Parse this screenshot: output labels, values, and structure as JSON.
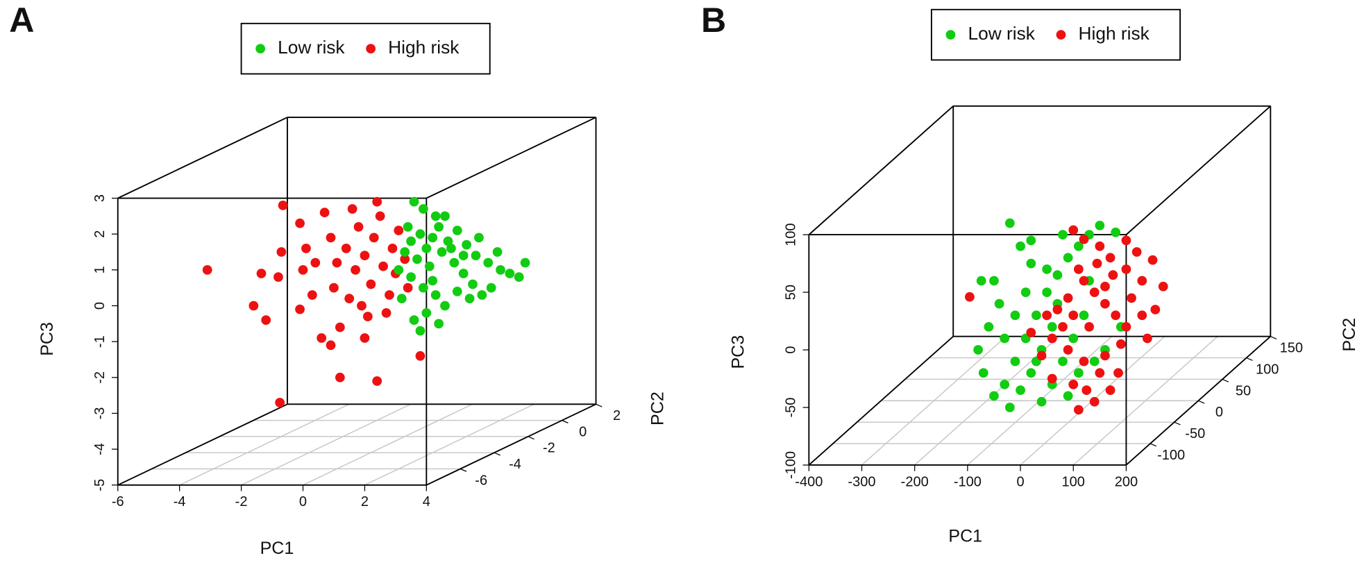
{
  "chart_data": [
    {
      "type": "scatter3d",
      "panel_label": "A",
      "x_label": "PC1",
      "y_label": "PC3",
      "z_label": "PC2",
      "xlim": [
        -6,
        4
      ],
      "ylim": [
        -5,
        3
      ],
      "zlim": [
        -8,
        2
      ],
      "xticks": [
        -6,
        -4,
        -2,
        0,
        2,
        4
      ],
      "yticks": [
        -5,
        -4,
        -3,
        -2,
        -1,
        0,
        1,
        2,
        3
      ],
      "zticks": [
        -6,
        -4,
        -2,
        0,
        2
      ],
      "floor_grid": true,
      "series": [
        {
          "name": "High risk",
          "color": "#ee1111",
          "x": [
            -3.1,
            -1.35,
            -1.6,
            -1.2,
            -0.7,
            -0.65,
            -0.1,
            -0.8,
            -0.1,
            -0.75,
            1.2,
            2.4,
            3.8,
            0.1,
            0.4,
            0.7,
            0.9,
            1.0,
            1.2,
            0.6,
            0.9,
            1.5,
            1.7,
            1.8,
            2.0,
            2.2,
            2.3,
            2.5,
            2.6,
            2.8,
            2.9,
            3.0,
            3.1,
            2.1,
            1.4,
            0.3,
            1.6,
            3.3,
            2.7,
            0.0,
            1.1,
            1.9,
            2.4,
            2.0,
            3.4
          ],
          "values": [
            1.0,
            0.9,
            0.0,
            -0.4,
            1.5,
            2.8,
            2.3,
            0.8,
            -0.1,
            -2.7,
            -2.0,
            -2.1,
            -1.4,
            1.6,
            1.2,
            2.6,
            1.9,
            0.5,
            -0.6,
            -0.9,
            -1.1,
            0.2,
            1.0,
            2.2,
            1.4,
            0.6,
            1.9,
            2.5,
            1.1,
            0.3,
            1.6,
            0.9,
            2.1,
            -0.3,
            1.6,
            0.3,
            2.7,
            1.3,
            -0.2,
            1.0,
            1.2,
            0.0,
            2.9,
            -0.9,
            0.5
          ]
        },
        {
          "name": "Low risk",
          "color": "#11cc11",
          "x": [
            3.6,
            3.9,
            4.3,
            4.6,
            3.4,
            3.8,
            4.2,
            4.7,
            5.0,
            5.3,
            5.6,
            6.0,
            6.4,
            7.2,
            7.0,
            3.3,
            3.7,
            4.1,
            4.5,
            4.9,
            5.2,
            5.5,
            5.8,
            6.1,
            6.7,
            3.5,
            3.9,
            4.3,
            4.0,
            3.6,
            3.2,
            4.6,
            5.0,
            5.4,
            4.4,
            3.8,
            4.8,
            5.2,
            4.0,
            3.5,
            4.4,
            5.7,
            6.3,
            3.1,
            4.2
          ],
          "values": [
            2.9,
            2.7,
            2.5,
            2.5,
            2.2,
            2.0,
            1.9,
            1.8,
            2.1,
            1.7,
            1.4,
            1.2,
            1.0,
            1.2,
            0.8,
            1.5,
            1.3,
            1.1,
            1.5,
            1.2,
            0.9,
            0.6,
            0.3,
            0.5,
            0.9,
            0.8,
            0.5,
            0.3,
            -0.2,
            -0.4,
            0.2,
            0.0,
            0.4,
            0.2,
            -0.5,
            -0.7,
            1.6,
            1.4,
            1.6,
            1.8,
            2.2,
            1.9,
            1.5,
            1.0,
            0.7
          ]
        }
      ]
    },
    {
      "type": "scatter3d",
      "panel_label": "B",
      "x_label": "PC1",
      "y_label": "PC3",
      "z_label": "PC2",
      "xlim": [
        -400,
        200
      ],
      "ylim": [
        -100,
        100
      ],
      "zlim": [
        -150,
        150
      ],
      "xticks": [
        -400,
        -300,
        -200,
        -100,
        0,
        100,
        200
      ],
      "yticks": [
        -100,
        -50,
        0,
        50,
        100
      ],
      "zticks": [
        -100,
        -50,
        0,
        50,
        100,
        150
      ],
      "floor_grid": true,
      "series": [
        {
          "name": "Low risk",
          "color": "#11cc11",
          "x": [
            -74,
            -20,
            0,
            20,
            -40,
            -60,
            -80,
            -70,
            -50,
            -30,
            -10,
            10,
            30,
            50,
            70,
            90,
            110,
            130,
            150,
            180,
            60,
            40,
            20,
            0,
            -20,
            40,
            60,
            80,
            100,
            120,
            140,
            160,
            190,
            -30,
            -10,
            10,
            30,
            70,
            50,
            90,
            110,
            130,
            20,
            -50,
            80
          ],
          "values": [
            60,
            110,
            90,
            75,
            40,
            20,
            0,
            -20,
            -40,
            -30,
            -10,
            10,
            30,
            50,
            65,
            80,
            90,
            100,
            108,
            102,
            20,
            0,
            -20,
            -35,
            -50,
            -45,
            -30,
            -10,
            10,
            30,
            -10,
            0,
            20,
            10,
            30,
            50,
            -10,
            40,
            70,
            -40,
            -20,
            60,
            95,
            60,
            100
          ]
        },
        {
          "name": "High risk",
          "color": "#ee1111",
          "x": [
            -96,
            100,
            120,
            150,
            170,
            200,
            230,
            250,
            270,
            120,
            140,
            160,
            180,
            200,
            230,
            100,
            80,
            60,
            90,
            120,
            150,
            170,
            140,
            110,
            60,
            40,
            20,
            160,
            210,
            240,
            190,
            130,
            110,
            175,
            145,
            90,
            70,
            200,
            220,
            160,
            100,
            50,
            255,
            185,
            125
          ],
          "values": [
            46,
            104,
            96,
            90,
            80,
            70,
            60,
            78,
            55,
            60,
            50,
            40,
            30,
            20,
            30,
            30,
            20,
            10,
            0,
            -10,
            -20,
            -35,
            -45,
            -52,
            -25,
            -5,
            15,
            55,
            45,
            10,
            5,
            20,
            70,
            65,
            75,
            45,
            35,
            95,
            85,
            -5,
            -30,
            30,
            35,
            -20,
            -35
          ]
        }
      ]
    }
  ]
}
